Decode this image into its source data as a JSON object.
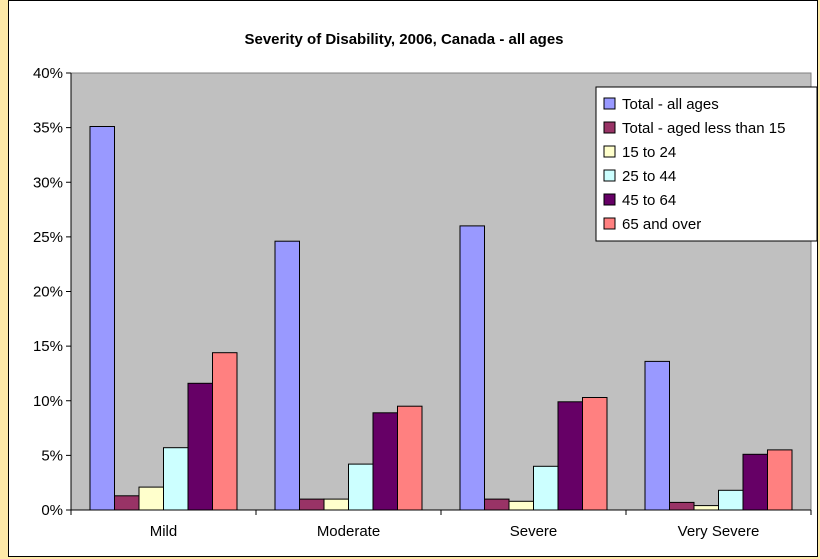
{
  "chart_data": {
    "type": "bar",
    "title": "Severity of Disability, 2006, Canada - all ages",
    "xlabel": "",
    "ylabel": "",
    "categories": [
      "Mild",
      "Moderate",
      "Severe",
      "Very Severe"
    ],
    "ylim": [
      0,
      40
    ],
    "y_ticks": [
      "0%",
      "5%",
      "10%",
      "15%",
      "20%",
      "25%",
      "30%",
      "35%",
      "40%"
    ],
    "y_tick_values": [
      0,
      5,
      10,
      15,
      20,
      25,
      30,
      35,
      40
    ],
    "grid": false,
    "legend_position": "top-right",
    "series": [
      {
        "name": "Total - all ages",
        "color": "#9999ff",
        "values": [
          35.1,
          24.6,
          26.0,
          13.6
        ]
      },
      {
        "name": "Total - aged less than 15",
        "color": "#993366",
        "values": [
          1.3,
          1.0,
          1.0,
          0.7
        ]
      },
      {
        "name": "15 to 24",
        "color": "#ffffcc",
        "values": [
          2.1,
          1.0,
          0.8,
          0.4
        ]
      },
      {
        "name": "25 to 44",
        "color": "#ccffff",
        "values": [
          5.7,
          4.2,
          4.0,
          1.8
        ]
      },
      {
        "name": "45 to 64",
        "color": "#660066",
        "values": [
          11.6,
          8.9,
          9.9,
          5.1
        ]
      },
      {
        "name": "65 and over",
        "color": "#ff8080",
        "values": [
          14.4,
          9.5,
          10.3,
          5.5
        ]
      }
    ]
  },
  "colors": {
    "plot_background": "#c0c0c0",
    "page_background": "#fde9a8"
  }
}
